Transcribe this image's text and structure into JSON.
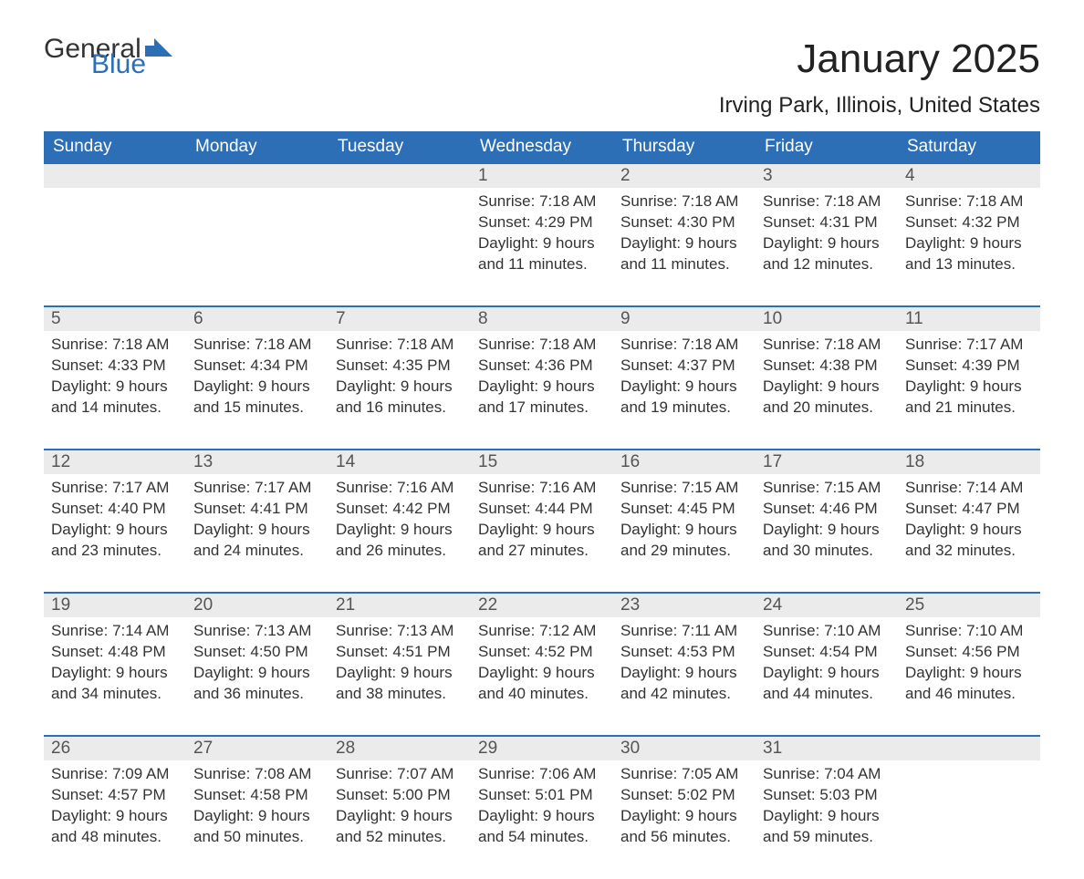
{
  "brand": {
    "word1": "General",
    "word2": "Blue",
    "color": "#2d6fb7"
  },
  "title": "January 2025",
  "location": "Irving Park, Illinois, United States",
  "theme": {
    "header_bg": "#2d6fb7",
    "header_fg": "#ffffff",
    "daynum_bg": "#ebebeb",
    "row_divider": "#2d6fb7",
    "text_color": "#333333",
    "page_bg": "#ffffff"
  },
  "columns": [
    "Sunday",
    "Monday",
    "Tuesday",
    "Wednesday",
    "Thursday",
    "Friday",
    "Saturday"
  ],
  "weeks": [
    [
      null,
      null,
      null,
      {
        "n": "1",
        "sunrise": "7:18 AM",
        "sunset": "4:29 PM",
        "daylight": "9 hours and 11 minutes."
      },
      {
        "n": "2",
        "sunrise": "7:18 AM",
        "sunset": "4:30 PM",
        "daylight": "9 hours and 11 minutes."
      },
      {
        "n": "3",
        "sunrise": "7:18 AM",
        "sunset": "4:31 PM",
        "daylight": "9 hours and 12 minutes."
      },
      {
        "n": "4",
        "sunrise": "7:18 AM",
        "sunset": "4:32 PM",
        "daylight": "9 hours and 13 minutes."
      }
    ],
    [
      {
        "n": "5",
        "sunrise": "7:18 AM",
        "sunset": "4:33 PM",
        "daylight": "9 hours and 14 minutes."
      },
      {
        "n": "6",
        "sunrise": "7:18 AM",
        "sunset": "4:34 PM",
        "daylight": "9 hours and 15 minutes."
      },
      {
        "n": "7",
        "sunrise": "7:18 AM",
        "sunset": "4:35 PM",
        "daylight": "9 hours and 16 minutes."
      },
      {
        "n": "8",
        "sunrise": "7:18 AM",
        "sunset": "4:36 PM",
        "daylight": "9 hours and 17 minutes."
      },
      {
        "n": "9",
        "sunrise": "7:18 AM",
        "sunset": "4:37 PM",
        "daylight": "9 hours and 19 minutes."
      },
      {
        "n": "10",
        "sunrise": "7:18 AM",
        "sunset": "4:38 PM",
        "daylight": "9 hours and 20 minutes."
      },
      {
        "n": "11",
        "sunrise": "7:17 AM",
        "sunset": "4:39 PM",
        "daylight": "9 hours and 21 minutes."
      }
    ],
    [
      {
        "n": "12",
        "sunrise": "7:17 AM",
        "sunset": "4:40 PM",
        "daylight": "9 hours and 23 minutes."
      },
      {
        "n": "13",
        "sunrise": "7:17 AM",
        "sunset": "4:41 PM",
        "daylight": "9 hours and 24 minutes."
      },
      {
        "n": "14",
        "sunrise": "7:16 AM",
        "sunset": "4:42 PM",
        "daylight": "9 hours and 26 minutes."
      },
      {
        "n": "15",
        "sunrise": "7:16 AM",
        "sunset": "4:44 PM",
        "daylight": "9 hours and 27 minutes."
      },
      {
        "n": "16",
        "sunrise": "7:15 AM",
        "sunset": "4:45 PM",
        "daylight": "9 hours and 29 minutes."
      },
      {
        "n": "17",
        "sunrise": "7:15 AM",
        "sunset": "4:46 PM",
        "daylight": "9 hours and 30 minutes."
      },
      {
        "n": "18",
        "sunrise": "7:14 AM",
        "sunset": "4:47 PM",
        "daylight": "9 hours and 32 minutes."
      }
    ],
    [
      {
        "n": "19",
        "sunrise": "7:14 AM",
        "sunset": "4:48 PM",
        "daylight": "9 hours and 34 minutes."
      },
      {
        "n": "20",
        "sunrise": "7:13 AM",
        "sunset": "4:50 PM",
        "daylight": "9 hours and 36 minutes."
      },
      {
        "n": "21",
        "sunrise": "7:13 AM",
        "sunset": "4:51 PM",
        "daylight": "9 hours and 38 minutes."
      },
      {
        "n": "22",
        "sunrise": "7:12 AM",
        "sunset": "4:52 PM",
        "daylight": "9 hours and 40 minutes."
      },
      {
        "n": "23",
        "sunrise": "7:11 AM",
        "sunset": "4:53 PM",
        "daylight": "9 hours and 42 minutes."
      },
      {
        "n": "24",
        "sunrise": "7:10 AM",
        "sunset": "4:54 PM",
        "daylight": "9 hours and 44 minutes."
      },
      {
        "n": "25",
        "sunrise": "7:10 AM",
        "sunset": "4:56 PM",
        "daylight": "9 hours and 46 minutes."
      }
    ],
    [
      {
        "n": "26",
        "sunrise": "7:09 AM",
        "sunset": "4:57 PM",
        "daylight": "9 hours and 48 minutes."
      },
      {
        "n": "27",
        "sunrise": "7:08 AM",
        "sunset": "4:58 PM",
        "daylight": "9 hours and 50 minutes."
      },
      {
        "n": "28",
        "sunrise": "7:07 AM",
        "sunset": "5:00 PM",
        "daylight": "9 hours and 52 minutes."
      },
      {
        "n": "29",
        "sunrise": "7:06 AM",
        "sunset": "5:01 PM",
        "daylight": "9 hours and 54 minutes."
      },
      {
        "n": "30",
        "sunrise": "7:05 AM",
        "sunset": "5:02 PM",
        "daylight": "9 hours and 56 minutes."
      },
      {
        "n": "31",
        "sunrise": "7:04 AM",
        "sunset": "5:03 PM",
        "daylight": "9 hours and 59 minutes."
      },
      null
    ]
  ],
  "labels": {
    "sunrise": "Sunrise: ",
    "sunset": "Sunset: ",
    "daylight": "Daylight: "
  }
}
